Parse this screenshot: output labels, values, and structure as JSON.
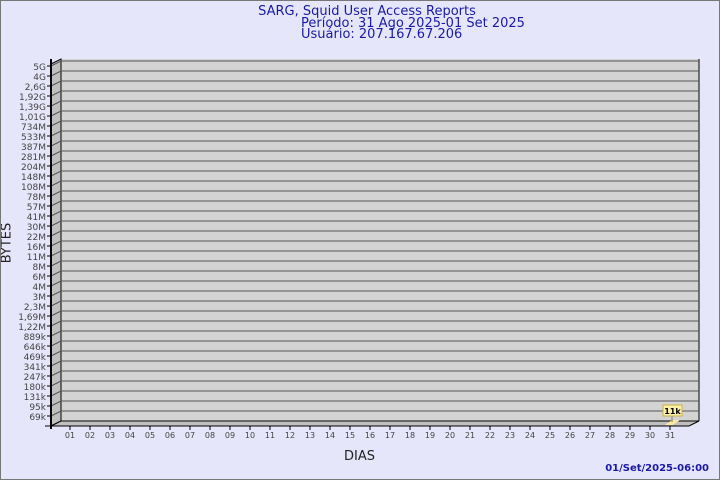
{
  "header": {
    "title": "SARG, Squid User Access Reports",
    "period": "Período: 31 Ago 2025-01 Set 2025",
    "user": "Usuário: 207.167.67.206"
  },
  "footer": {
    "timestamp": "01/Set/2025-06:00"
  },
  "chart_data": {
    "type": "bar",
    "title": "SARG, Squid User Access Reports",
    "xlabel": "DIAS",
    "ylabel": "BYTES",
    "categories": [
      "01",
      "02",
      "03",
      "04",
      "05",
      "06",
      "07",
      "08",
      "09",
      "10",
      "11",
      "12",
      "13",
      "14",
      "15",
      "16",
      "17",
      "18",
      "19",
      "20",
      "21",
      "22",
      "23",
      "24",
      "25",
      "26",
      "27",
      "28",
      "29",
      "30",
      "31"
    ],
    "y_ticks": [
      "5G",
      "4G",
      "2,6G",
      "1,92G",
      "1,39G",
      "1,01G",
      "734M",
      "533M",
      "387M",
      "281M",
      "204M",
      "148M",
      "108M",
      "78M",
      "57M",
      "41M",
      "30M",
      "22M",
      "16M",
      "11M",
      "8M",
      "6M",
      "4M",
      "3M",
      "2,3M",
      "1,69M",
      "1,22M",
      "889k",
      "646k",
      "469k",
      "341k",
      "247k",
      "180k",
      "131k",
      "95k",
      "69k"
    ],
    "series": [
      {
        "values": [
          null,
          null,
          null,
          null,
          null,
          null,
          null,
          null,
          null,
          null,
          null,
          null,
          null,
          null,
          null,
          null,
          null,
          null,
          null,
          null,
          null,
          null,
          null,
          null,
          null,
          null,
          null,
          null,
          null,
          null,
          11000
        ]
      }
    ],
    "data_labels": {
      "31": "11k"
    },
    "grid": true,
    "colors": {
      "wall": "#d3d3d3",
      "bar": "#fce9a0",
      "label_bg": "#fbf0a8",
      "text": "#1a1aa6"
    }
  }
}
